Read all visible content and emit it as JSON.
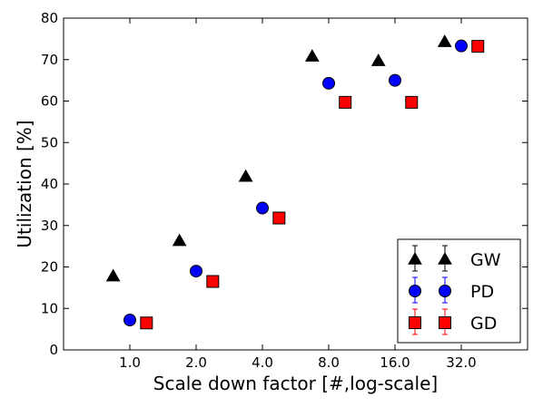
{
  "chart_data": {
    "type": "scatter",
    "xlabel": "Scale down factor [#,log-scale]",
    "ylabel": "Utilization [%]",
    "x_scale": "log2",
    "x_ticks": [
      1,
      2,
      4,
      8,
      16,
      32
    ],
    "x_tick_labels": [
      "1.0",
      "2.0",
      "4.0",
      "8.0",
      "16.0",
      "32.0"
    ],
    "xlim": [
      0.5,
      64
    ],
    "y_ticks": [
      0,
      10,
      20,
      30,
      40,
      50,
      60,
      70,
      80
    ],
    "y_tick_labels": [
      "0",
      "10",
      "20",
      "30",
      "40",
      "50",
      "60",
      "70",
      "80"
    ],
    "ylim": [
      0,
      80
    ],
    "grid": false,
    "legend_position": "bottom-right",
    "series": [
      {
        "name": "GW",
        "marker": "triangle",
        "color": "#000000",
        "x": [
          0.84,
          1.68,
          3.36,
          6.73,
          13.45,
          26.9
        ],
        "y": [
          17.8,
          26.3,
          41.8,
          70.8,
          69.7,
          74.3
        ]
      },
      {
        "name": "PD",
        "marker": "circle",
        "color": "#0000ff",
        "x": [
          1.0,
          2.0,
          4.0,
          8.0,
          16.0,
          32.0
        ],
        "y": [
          7.2,
          19.0,
          34.2,
          64.3,
          65.0,
          73.3
        ]
      },
      {
        "name": "GD",
        "marker": "square",
        "color": "#ff0000",
        "x": [
          1.19,
          2.38,
          4.76,
          9.51,
          19.03,
          38.05
        ],
        "y": [
          6.5,
          16.5,
          31.8,
          59.7,
          59.7,
          73.2
        ]
      }
    ]
  }
}
